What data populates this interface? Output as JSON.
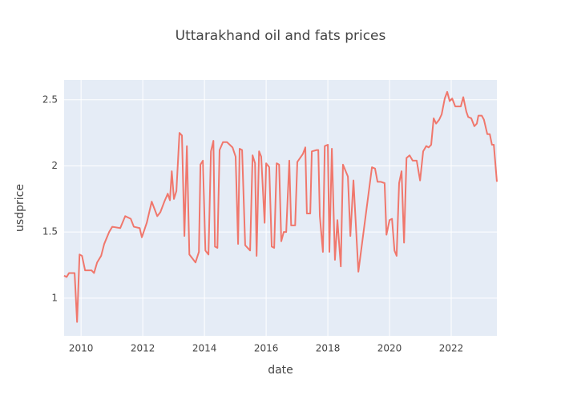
{
  "chart_data": {
    "type": "line",
    "title": "Uttarakhand oil and fats prices",
    "x_label": "date",
    "y_label": "usdprice",
    "color": "#f0776c",
    "grid": true,
    "xlim": [
      2009.45,
      2023.48
    ],
    "xticks": [
      2010,
      2012,
      2014,
      2016,
      2018,
      2020,
      2022
    ],
    "ylim": [
      0.715,
      2.65
    ],
    "yticks": [
      1,
      1.5,
      2,
      2.5
    ],
    "x": [
      2009.45,
      2009.53,
      2009.61,
      2009.79,
      2009.87,
      2009.95,
      2010.03,
      2010.13,
      2010.34,
      2010.42,
      2010.52,
      2010.65,
      2010.75,
      2010.91,
      2011.01,
      2011.27,
      2011.43,
      2011.61,
      2011.71,
      2011.9,
      2011.97,
      2012.13,
      2012.29,
      2012.47,
      2012.57,
      2012.7,
      2012.81,
      2012.88,
      2012.94,
      2013.01,
      2013.09,
      2013.19,
      2013.27,
      2013.35,
      2013.43,
      2013.51,
      2013.71,
      2013.82,
      2013.87,
      2013.95,
      2014.03,
      2014.13,
      2014.21,
      2014.29,
      2014.34,
      2014.42,
      2014.49,
      2014.6,
      2014.73,
      2014.91,
      2015.01,
      2015.09,
      2015.14,
      2015.22,
      2015.32,
      2015.48,
      2015.56,
      2015.64,
      2015.69,
      2015.77,
      2015.84,
      2015.95,
      2016.0,
      2016.1,
      2016.18,
      2016.26,
      2016.34,
      2016.42,
      2016.49,
      2016.57,
      2016.65,
      2016.75,
      2016.81,
      2016.94,
      2017.01,
      2017.19,
      2017.27,
      2017.32,
      2017.43,
      2017.48,
      2017.64,
      2017.69,
      2017.74,
      2017.84,
      2017.9,
      2018.0,
      2018.05,
      2018.13,
      2018.23,
      2018.31,
      2018.42,
      2018.49,
      2018.65,
      2018.73,
      2018.83,
      2018.99,
      2019.43,
      2019.53,
      2019.61,
      2019.71,
      2019.84,
      2019.9,
      2020.0,
      2020.08,
      2020.16,
      2020.23,
      2020.31,
      2020.39,
      2020.47,
      2020.55,
      2020.65,
      2020.75,
      2020.88,
      2020.99,
      2021.09,
      2021.19,
      2021.27,
      2021.35,
      2021.43,
      2021.51,
      2021.61,
      2021.69,
      2021.79,
      2021.87,
      2021.95,
      2022.03,
      2022.13,
      2022.31,
      2022.39,
      2022.49,
      2022.55,
      2022.65,
      2022.75,
      2022.83,
      2022.88,
      2022.99,
      2023.06,
      2023.17,
      2023.25,
      2023.32,
      2023.38,
      2023.48
    ],
    "values": [
      1.17,
      1.16,
      1.19,
      1.19,
      0.82,
      1.33,
      1.32,
      1.21,
      1.21,
      1.19,
      1.27,
      1.32,
      1.41,
      1.5,
      1.54,
      1.53,
      1.62,
      1.6,
      1.54,
      1.53,
      1.46,
      1.57,
      1.73,
      1.62,
      1.65,
      1.73,
      1.79,
      1.74,
      1.96,
      1.75,
      1.81,
      2.25,
      2.23,
      1.47,
      2.15,
      1.33,
      1.27,
      1.35,
      2.01,
      2.04,
      1.36,
      1.33,
      2.11,
      2.19,
      1.39,
      1.38,
      2.12,
      2.18,
      2.18,
      2.14,
      2.07,
      1.41,
      2.13,
      2.12,
      1.4,
      1.36,
      2.08,
      2.02,
      1.32,
      2.11,
      2.07,
      1.57,
      2.02,
      1.99,
      1.39,
      1.38,
      2.02,
      2.01,
      1.43,
      1.5,
      1.5,
      2.04,
      1.55,
      1.55,
      2.03,
      2.09,
      2.14,
      1.64,
      1.64,
      2.11,
      2.12,
      2.12,
      1.62,
      1.35,
      2.15,
      2.16,
      1.35,
      2.13,
      1.29,
      1.59,
      1.24,
      2.01,
      1.92,
      1.47,
      1.89,
      1.2,
      1.99,
      1.98,
      1.88,
      1.88,
      1.87,
      1.48,
      1.59,
      1.6,
      1.36,
      1.32,
      1.87,
      1.96,
      1.42,
      2.06,
      2.08,
      2.04,
      2.04,
      1.89,
      2.11,
      2.15,
      2.14,
      2.16,
      2.36,
      2.32,
      2.35,
      2.39,
      2.51,
      2.56,
      2.49,
      2.51,
      2.45,
      2.45,
      2.52,
      2.41,
      2.37,
      2.36,
      2.3,
      2.32,
      2.38,
      2.38,
      2.35,
      2.24,
      2.24,
      2.16,
      2.16,
      1.88
    ]
  }
}
